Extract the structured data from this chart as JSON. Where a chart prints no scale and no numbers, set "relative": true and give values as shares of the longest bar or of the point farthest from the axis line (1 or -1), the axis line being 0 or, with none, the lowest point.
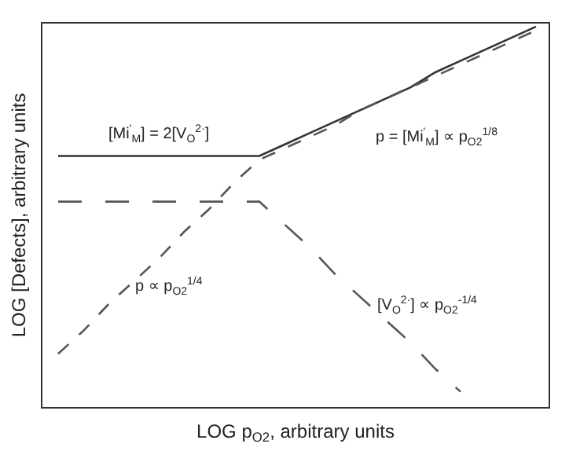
{
  "chart_data": {
    "type": "line",
    "relative": true,
    "xlabel": "LOG p$_{O2}$, arbitrary units",
    "ylabel": "LOG [Defects], arbitrary units",
    "marker": "none",
    "categories": [
      null,
      null,
      null,
      null,
      null,
      null,
      null,
      null,
      null,
      null,
      null,
      null,
      null,
      null,
      null,
      null,
      null,
      null,
      null,
      null
    ],
    "series": [
      {
        "color": "#333333",
        "line_style": "solid",
        "values": [
          0.66,
          0.66,
          0.66,
          0.66,
          0.66,
          0.66,
          0.66,
          0.66,
          0.66,
          0.69,
          0.72,
          0.75,
          0.78,
          0.81,
          0.84,
          0.88,
          0.91,
          0.94,
          0.97,
          1.0
        ]
      },
      {
        "color": "#555555",
        "line_style": "dashed",
        "values": [
          0.14,
          0.2,
          0.27,
          0.33,
          0.39,
          0.46,
          0.52,
          0.59,
          0.65,
          0.68,
          0.71,
          0.74,
          0.78,
          0.81,
          0.84,
          0.87,
          0.9,
          0.93,
          0.96,
          0.99
        ]
      },
      {
        "color": "#555555",
        "line_style": "longdash",
        "values": [
          0.54,
          0.54,
          0.54,
          0.54,
          0.54,
          0.54,
          0.54,
          0.54,
          0.54,
          0.48,
          0.42,
          0.35,
          0.29,
          0.23,
          0.17,
          0.1,
          0.04,
          null,
          null,
          null
        ]
      }
    ],
    "annotations": [
      "[Mi$^{'}$$_{M}$] = 2[V$_{O}$$^{2·}$]",
      "p = [Mi$^{'}$$_{M}$] ∝ p$_{O2}$$^{1/8}$",
      "p ∝ p$_{O2}$$^{1/4}$",
      "[V$_{O}$$^{2·}$] ∝ p$_{O2}$$^{-1/4}$"
    ]
  }
}
